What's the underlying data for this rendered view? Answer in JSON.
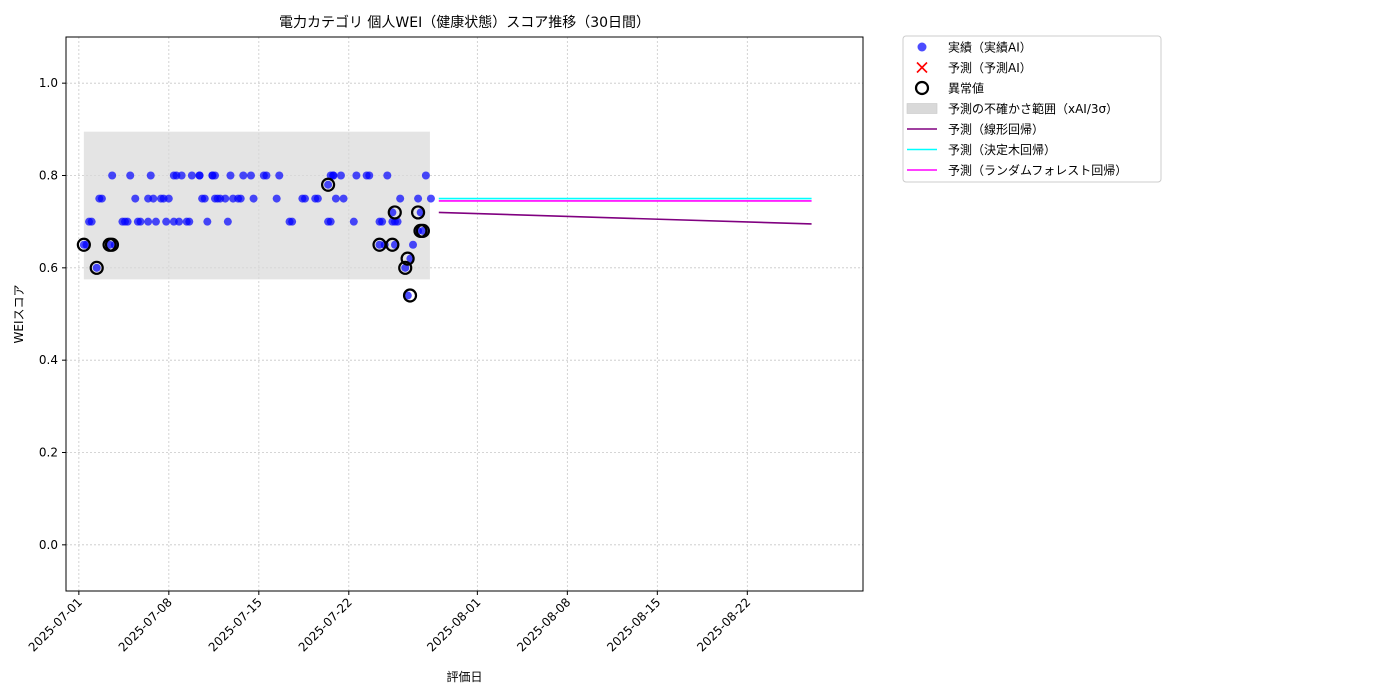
{
  "chart_data": {
    "type": "scatter",
    "title": "電力カテゴリ 個人WEI（健康状態）スコア推移（30日間）",
    "xlabel": "評価日",
    "ylabel": "WEIスコア",
    "x_range": [
      "2025-06-30",
      "2025-08-31"
    ],
    "ylim": [
      -0.1,
      1.1
    ],
    "y_ticks": [
      0.0,
      0.2,
      0.4,
      0.6,
      0.8,
      1.0
    ],
    "y_tick_labels": [
      "0.0",
      "0.2",
      "0.4",
      "0.6",
      "0.8",
      "1.0"
    ],
    "x_ticks": [
      "2025-07-01",
      "2025-07-08",
      "2025-07-15",
      "2025-07-22",
      "2025-08-01",
      "2025-08-08",
      "2025-08-15",
      "2025-08-22"
    ],
    "grid": true,
    "legend_position": "outside-top-right",
    "legend": [
      {
        "label": "実績（実績AI）",
        "kind": "dot",
        "color": "#0000ff"
      },
      {
        "label": "予測（予測AI）",
        "kind": "cross",
        "color": "#ff0000"
      },
      {
        "label": "異常値",
        "kind": "ring",
        "color": "#000000"
      },
      {
        "label": "予測の不確かさ範囲（xAI/3σ）",
        "kind": "band",
        "color": "#d9d9d9"
      },
      {
        "label": "予測（線形回帰）",
        "kind": "line",
        "color": "#800080"
      },
      {
        "label": "予測（決定木回帰）",
        "kind": "line",
        "color": "#00ffff"
      },
      {
        "label": "予測（ランダムフォレスト回帰）",
        "kind": "line",
        "color": "#ff00ff"
      }
    ],
    "uncertainty_band": {
      "x_start": "2025-07-01",
      "x_end": "2025-07-28",
      "y_low": 0.575,
      "y_high": 0.895,
      "color": "#d9d9d9"
    },
    "actual": {
      "name": "実績（実績AI）",
      "color": "#0000ff",
      "points": [
        {
          "x": "2025-07-01",
          "y": 0.65
        },
        {
          "x": "2025-07-01",
          "y": 0.65
        },
        {
          "x": "2025-07-01",
          "y": 0.7
        },
        {
          "x": "2025-07-01",
          "y": 0.7
        },
        {
          "x": "2025-07-02",
          "y": 0.6
        },
        {
          "x": "2025-07-02",
          "y": 0.75
        },
        {
          "x": "2025-07-02",
          "y": 0.75
        },
        {
          "x": "2025-07-03",
          "y": 0.65
        },
        {
          "x": "2025-07-03",
          "y": 0.8
        },
        {
          "x": "2025-07-03",
          "y": 0.65
        },
        {
          "x": "2025-07-04",
          "y": 0.7
        },
        {
          "x": "2025-07-04",
          "y": 0.7
        },
        {
          "x": "2025-07-04",
          "y": 0.7
        },
        {
          "x": "2025-07-04",
          "y": 0.8
        },
        {
          "x": "2025-07-05",
          "y": 0.75
        },
        {
          "x": "2025-07-05",
          "y": 0.7
        },
        {
          "x": "2025-07-05",
          "y": 0.7
        },
        {
          "x": "2025-07-06",
          "y": 0.75
        },
        {
          "x": "2025-07-06",
          "y": 0.8
        },
        {
          "x": "2025-07-06",
          "y": 0.75
        },
        {
          "x": "2025-07-06",
          "y": 0.7
        },
        {
          "x": "2025-07-06",
          "y": 0.7
        },
        {
          "x": "2025-07-07",
          "y": 0.75
        },
        {
          "x": "2025-07-07",
          "y": 0.75
        },
        {
          "x": "2025-07-07",
          "y": 0.7
        },
        {
          "x": "2025-07-07",
          "y": 0.75
        },
        {
          "x": "2025-07-08",
          "y": 0.8
        },
        {
          "x": "2025-07-08",
          "y": 0.8
        },
        {
          "x": "2025-07-08",
          "y": 0.7
        },
        {
          "x": "2025-07-08",
          "y": 0.8
        },
        {
          "x": "2025-07-08",
          "y": 0.7
        },
        {
          "x": "2025-07-09",
          "y": 0.7
        },
        {
          "x": "2025-07-09",
          "y": 0.7
        },
        {
          "x": "2025-07-09",
          "y": 0.8
        },
        {
          "x": "2025-07-10",
          "y": 0.8
        },
        {
          "x": "2025-07-10",
          "y": 0.75
        },
        {
          "x": "2025-07-10",
          "y": 0.75
        },
        {
          "x": "2025-07-10",
          "y": 0.7
        },
        {
          "x": "2025-07-10",
          "y": 0.8
        },
        {
          "x": "2025-07-11",
          "y": 0.8
        },
        {
          "x": "2025-07-11",
          "y": 0.8
        },
        {
          "x": "2025-07-11",
          "y": 0.75
        },
        {
          "x": "2025-07-11",
          "y": 0.75
        },
        {
          "x": "2025-07-11",
          "y": 0.8
        },
        {
          "x": "2025-07-11",
          "y": 0.75
        },
        {
          "x": "2025-07-12",
          "y": 0.75
        },
        {
          "x": "2025-07-12",
          "y": 0.7
        },
        {
          "x": "2025-07-12",
          "y": 0.8
        },
        {
          "x": "2025-07-12",
          "y": 0.75
        },
        {
          "x": "2025-07-13",
          "y": 0.75
        },
        {
          "x": "2025-07-13",
          "y": 0.75
        },
        {
          "x": "2025-07-13",
          "y": 0.8
        },
        {
          "x": "2025-07-14",
          "y": 0.8
        },
        {
          "x": "2025-07-14",
          "y": 0.75
        },
        {
          "x": "2025-07-15",
          "y": 0.8
        },
        {
          "x": "2025-07-15",
          "y": 0.8
        },
        {
          "x": "2025-07-16",
          "y": 0.75
        },
        {
          "x": "2025-07-16",
          "y": 0.8
        },
        {
          "x": "2025-07-17",
          "y": 0.7
        },
        {
          "x": "2025-07-17",
          "y": 0.7
        },
        {
          "x": "2025-07-18",
          "y": 0.75
        },
        {
          "x": "2025-07-18",
          "y": 0.75
        },
        {
          "x": "2025-07-19",
          "y": 0.75
        },
        {
          "x": "2025-07-19",
          "y": 0.75
        },
        {
          "x": "2025-07-20",
          "y": 0.78
        },
        {
          "x": "2025-07-20",
          "y": 0.8
        },
        {
          "x": "2025-07-20",
          "y": 0.8
        },
        {
          "x": "2025-07-20",
          "y": 0.75
        },
        {
          "x": "2025-07-20",
          "y": 0.7
        },
        {
          "x": "2025-07-20",
          "y": 0.7
        },
        {
          "x": "2025-07-20",
          "y": 0.8
        },
        {
          "x": "2025-07-21",
          "y": 0.8
        },
        {
          "x": "2025-07-21",
          "y": 0.75
        },
        {
          "x": "2025-07-22",
          "y": 0.7
        },
        {
          "x": "2025-07-22",
          "y": 0.8
        },
        {
          "x": "2025-07-23",
          "y": 0.8
        },
        {
          "x": "2025-07-23",
          "y": 0.8
        },
        {
          "x": "2025-07-24",
          "y": 0.65
        },
        {
          "x": "2025-07-24",
          "y": 0.7
        },
        {
          "x": "2025-07-24",
          "y": 0.65
        },
        {
          "x": "2025-07-24",
          "y": 0.8
        },
        {
          "x": "2025-07-24",
          "y": 0.7
        },
        {
          "x": "2025-07-25",
          "y": 0.7
        },
        {
          "x": "2025-07-25",
          "y": 0.65
        },
        {
          "x": "2025-07-25",
          "y": 0.7
        },
        {
          "x": "2025-07-25",
          "y": 0.75
        },
        {
          "x": "2025-07-25",
          "y": 0.72
        },
        {
          "x": "2025-07-25",
          "y": 0.7
        },
        {
          "x": "2025-07-26",
          "y": 0.6
        },
        {
          "x": "2025-07-26",
          "y": 0.54
        },
        {
          "x": "2025-07-26",
          "y": 0.62
        },
        {
          "x": "2025-07-26",
          "y": 0.65
        },
        {
          "x": "2025-07-27",
          "y": 0.68
        },
        {
          "x": "2025-07-27",
          "y": 0.72
        },
        {
          "x": "2025-07-27",
          "y": 0.68
        },
        {
          "x": "2025-07-27",
          "y": 0.8
        },
        {
          "x": "2025-07-27",
          "y": 0.75
        },
        {
          "x": "2025-07-28",
          "y": 0.75
        }
      ]
    },
    "anomalies": {
      "name": "異常値",
      "color": "#000000",
      "points": [
        {
          "x": "2025-07-01",
          "y": 0.65
        },
        {
          "x": "2025-07-02",
          "y": 0.6
        },
        {
          "x": "2025-07-03",
          "y": 0.65
        },
        {
          "x": "2025-07-03",
          "y": 0.65
        },
        {
          "x": "2025-07-20",
          "y": 0.78
        },
        {
          "x": "2025-07-24",
          "y": 0.65
        },
        {
          "x": "2025-07-25",
          "y": 0.65
        },
        {
          "x": "2025-07-25",
          "y": 0.72
        },
        {
          "x": "2025-07-26",
          "y": 0.6
        },
        {
          "x": "2025-07-26",
          "y": 0.62
        },
        {
          "x": "2025-07-26",
          "y": 0.54
        },
        {
          "x": "2025-07-27",
          "y": 0.72
        },
        {
          "x": "2025-07-27",
          "y": 0.68
        },
        {
          "x": "2025-07-27",
          "y": 0.68
        }
      ]
    },
    "prediction_lines": [
      {
        "name": "予測（線形回帰）",
        "color": "#800080",
        "x": [
          "2025-07-29",
          "2025-08-27"
        ],
        "y": [
          0.72,
          0.695
        ]
      },
      {
        "name": "予測（決定木回帰）",
        "color": "#00ffff",
        "x": [
          "2025-07-29",
          "2025-08-27"
        ],
        "y": [
          0.75,
          0.75
        ]
      },
      {
        "name": "予測（ランダムフォレスト回帰）",
        "color": "#ff00ff",
        "x": [
          "2025-07-29",
          "2025-08-27"
        ],
        "y": [
          0.745,
          0.745
        ]
      }
    ]
  }
}
